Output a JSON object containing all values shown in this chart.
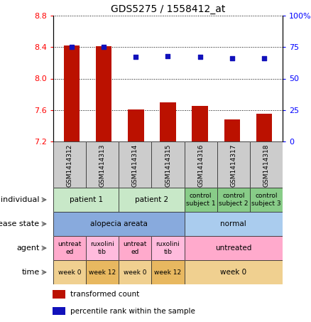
{
  "title": "GDS5275 / 1558412_at",
  "samples": [
    "GSM1414312",
    "GSM1414313",
    "GSM1414314",
    "GSM1414315",
    "GSM1414316",
    "GSM1414317",
    "GSM1414318"
  ],
  "bar_values": [
    8.42,
    8.41,
    7.61,
    7.7,
    7.65,
    7.48,
    7.55
  ],
  "dot_values": [
    75,
    75,
    67,
    68,
    67,
    66,
    66
  ],
  "ylim_left": [
    7.2,
    8.8
  ],
  "ylim_right": [
    0,
    100
  ],
  "yticks_left": [
    7.2,
    7.6,
    8.0,
    8.4,
    8.8
  ],
  "yticks_right": [
    0,
    25,
    50,
    75,
    100
  ],
  "bar_color": "#bb1100",
  "dot_color": "#1111bb",
  "bar_bottom": 7.2,
  "annotation_rows": [
    {
      "label": "individual",
      "cells": [
        {
          "text": "patient 1",
          "colspan": 2,
          "color": "#c8e8c8"
        },
        {
          "text": "patient 2",
          "colspan": 2,
          "color": "#c8e8c8"
        },
        {
          "text": "control\nsubject 1",
          "colspan": 1,
          "color": "#88cc88"
        },
        {
          "text": "control\nsubject 2",
          "colspan": 1,
          "color": "#88cc88"
        },
        {
          "text": "control\nsubject 3",
          "colspan": 1,
          "color": "#88cc88"
        }
      ]
    },
    {
      "label": "disease state",
      "cells": [
        {
          "text": "alopecia areata",
          "colspan": 4,
          "color": "#88aadd"
        },
        {
          "text": "normal",
          "colspan": 3,
          "color": "#aaccee"
        }
      ]
    },
    {
      "label": "agent",
      "cells": [
        {
          "text": "untreat\ned",
          "colspan": 1,
          "color": "#ffaacc"
        },
        {
          "text": "ruxolini\ntib",
          "colspan": 1,
          "color": "#ffbbdd"
        },
        {
          "text": "untreat\ned",
          "colspan": 1,
          "color": "#ffaacc"
        },
        {
          "text": "ruxolini\ntib",
          "colspan": 1,
          "color": "#ffbbdd"
        },
        {
          "text": "untreated",
          "colspan": 3,
          "color": "#ffaacc"
        }
      ]
    },
    {
      "label": "time",
      "cells": [
        {
          "text": "week 0",
          "colspan": 1,
          "color": "#f0d090"
        },
        {
          "text": "week 12",
          "colspan": 1,
          "color": "#e8b860"
        },
        {
          "text": "week 0",
          "colspan": 1,
          "color": "#f0d090"
        },
        {
          "text": "week 12",
          "colspan": 1,
          "color": "#e8b860"
        },
        {
          "text": "week 0",
          "colspan": 3,
          "color": "#f0d090"
        }
      ]
    }
  ]
}
